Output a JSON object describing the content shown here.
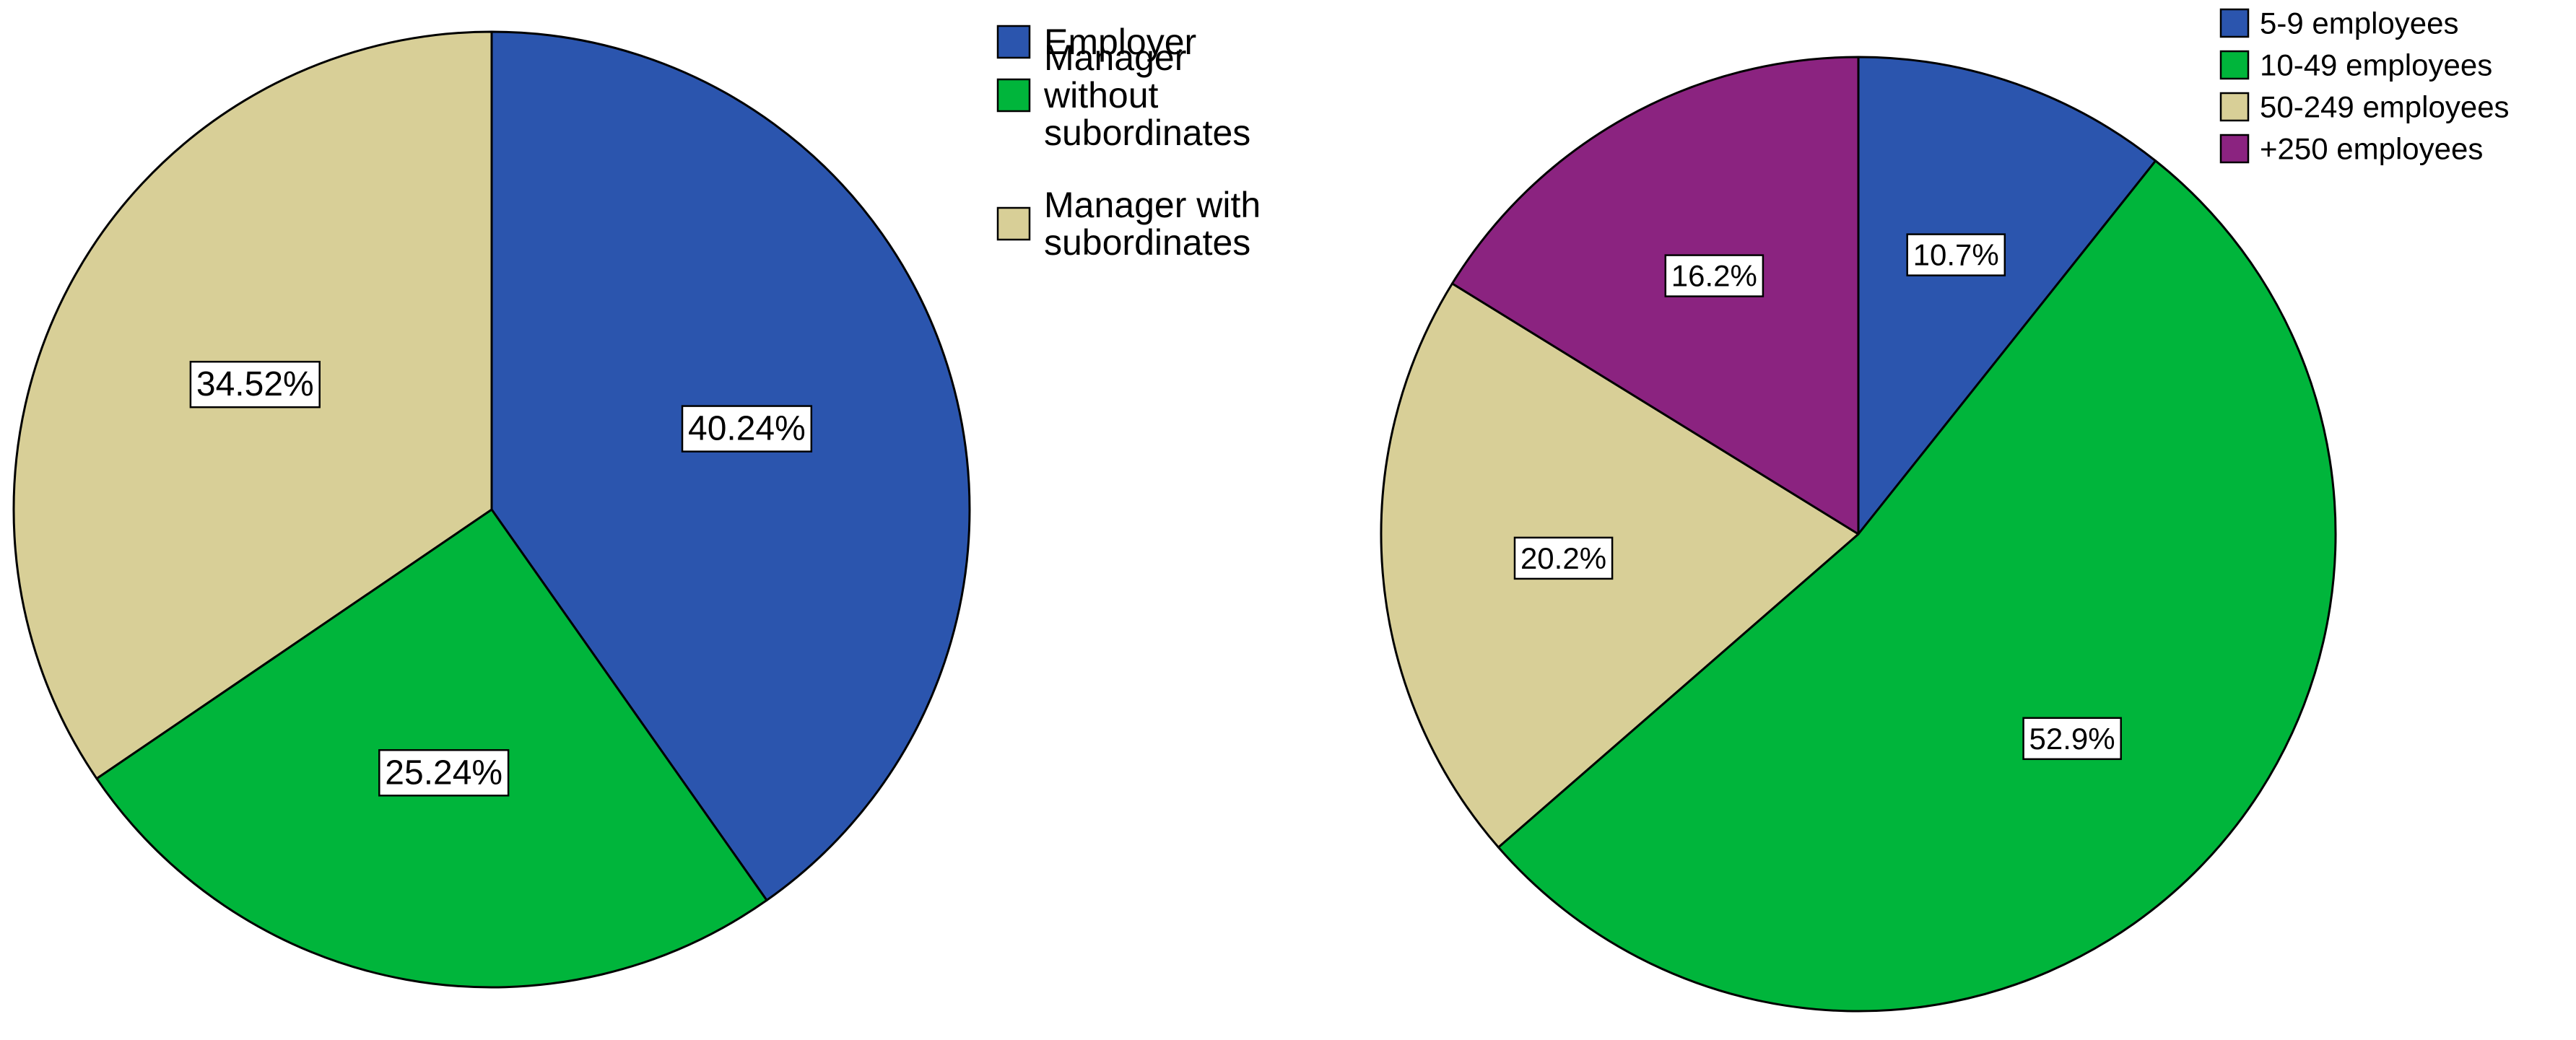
{
  "chart_data": [
    {
      "type": "pie",
      "title": "",
      "start_angle_deg": 0,
      "direction": "clockwise",
      "legend_position": "top-right",
      "slices": [
        {
          "label": "Employer",
          "value": 40.24,
          "display": "40.24%",
          "color": "#2B55AE"
        },
        {
          "label": "Manager without subordinates",
          "legend_lines": [
            "Manager",
            "without",
            "subordinates"
          ],
          "value": 25.24,
          "display": "25.24%",
          "color": "#00B53B"
        },
        {
          "label": "Manager with subordinates",
          "legend_lines": [
            "Manager with",
            "subordinates"
          ],
          "value": 34.52,
          "display": "34.52%",
          "color": "#D8CF97"
        }
      ]
    },
    {
      "type": "pie",
      "title": "",
      "start_angle_deg": 0,
      "direction": "clockwise",
      "legend_position": "top-right",
      "slices": [
        {
          "label": "5-9 employees",
          "value": 10.7,
          "display": "10.7%",
          "color": "#2B55AE"
        },
        {
          "label": "10-49 employees",
          "value": 52.9,
          "display": "52.9%",
          "color": "#00B53B"
        },
        {
          "label": "50-249 employees",
          "value": 20.2,
          "display": "20.2%",
          "color": "#D8CF97"
        },
        {
          "label": "+250 employees",
          "value": 16.2,
          "display": "16.2%",
          "color": "#8B2380"
        }
      ]
    }
  ]
}
